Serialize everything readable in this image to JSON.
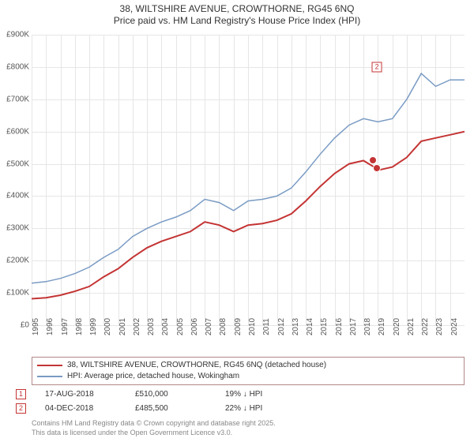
{
  "title": {
    "line1": "38, WILTSHIRE AVENUE, CROWTHORNE, RG45 6NQ",
    "line2": "Price paid vs. HM Land Registry's House Price Index (HPI)",
    "fontsize": 12,
    "color": "#333333"
  },
  "chart": {
    "type": "line",
    "background_color": "#ffffff",
    "grid_color": "#e6e6e6",
    "y_axis": {
      "min": 0,
      "max": 900000,
      "tick_step": 100000,
      "tick_labels": [
        "£0",
        "£100K",
        "£200K",
        "£300K",
        "£400K",
        "£500K",
        "£600K",
        "£700K",
        "£800K",
        "£900K"
      ],
      "label_fontsize": 10,
      "label_color": "#555555"
    },
    "x_axis": {
      "min": 1995,
      "max": 2025,
      "tick_step": 1,
      "tick_labels": [
        "1995",
        "1996",
        "1997",
        "1998",
        "1999",
        "2000",
        "2001",
        "2002",
        "2003",
        "2004",
        "2005",
        "2006",
        "2007",
        "2008",
        "2009",
        "2010",
        "2011",
        "2012",
        "2013",
        "2014",
        "2015",
        "2016",
        "2017",
        "2018",
        "2019",
        "2020",
        "2021",
        "2022",
        "2023",
        "2024"
      ],
      "label_fontsize": 10,
      "label_color": "#555555",
      "rotation": -90
    },
    "series": [
      {
        "name": "price_paid",
        "label": "38, WILTSHIRE AVENUE, CROWTHORNE, RG45 6NQ (detached house)",
        "color": "#c43434",
        "line_width": 2,
        "points": [
          [
            1995,
            82000
          ],
          [
            1996,
            85000
          ],
          [
            1997,
            93000
          ],
          [
            1998,
            105000
          ],
          [
            1999,
            120000
          ],
          [
            2000,
            150000
          ],
          [
            2001,
            175000
          ],
          [
            2002,
            210000
          ],
          [
            2003,
            240000
          ],
          [
            2004,
            260000
          ],
          [
            2005,
            275000
          ],
          [
            2006,
            290000
          ],
          [
            2007,
            320000
          ],
          [
            2008,
            310000
          ],
          [
            2009,
            290000
          ],
          [
            2010,
            310000
          ],
          [
            2011,
            315000
          ],
          [
            2012,
            325000
          ],
          [
            2013,
            345000
          ],
          [
            2014,
            385000
          ],
          [
            2015,
            430000
          ],
          [
            2016,
            470000
          ],
          [
            2017,
            500000
          ],
          [
            2018,
            510000
          ],
          [
            2018.9,
            485500
          ],
          [
            2019,
            480000
          ],
          [
            2020,
            490000
          ],
          [
            2021,
            520000
          ],
          [
            2022,
            570000
          ],
          [
            2023,
            580000
          ],
          [
            2024,
            590000
          ],
          [
            2025,
            600000
          ]
        ]
      },
      {
        "name": "hpi",
        "label": "HPI: Average price, detached house, Wokingham",
        "color": "#7a9bc4",
        "line_width": 1.5,
        "points": [
          [
            1995,
            130000
          ],
          [
            1996,
            135000
          ],
          [
            1997,
            145000
          ],
          [
            1998,
            160000
          ],
          [
            1999,
            180000
          ],
          [
            2000,
            210000
          ],
          [
            2001,
            235000
          ],
          [
            2002,
            275000
          ],
          [
            2003,
            300000
          ],
          [
            2004,
            320000
          ],
          [
            2005,
            335000
          ],
          [
            2006,
            355000
          ],
          [
            2007,
            390000
          ],
          [
            2008,
            380000
          ],
          [
            2009,
            355000
          ],
          [
            2010,
            385000
          ],
          [
            2011,
            390000
          ],
          [
            2012,
            400000
          ],
          [
            2013,
            425000
          ],
          [
            2014,
            475000
          ],
          [
            2015,
            530000
          ],
          [
            2016,
            580000
          ],
          [
            2017,
            620000
          ],
          [
            2018,
            640000
          ],
          [
            2019,
            630000
          ],
          [
            2020,
            640000
          ],
          [
            2021,
            700000
          ],
          [
            2022,
            780000
          ],
          [
            2023,
            740000
          ],
          [
            2024,
            760000
          ],
          [
            2025,
            760000
          ]
        ]
      }
    ],
    "sale_points": [
      {
        "year": 2018.63,
        "value": 510000
      },
      {
        "year": 2018.93,
        "value": 485500
      }
    ],
    "overlay_markers": [
      {
        "n": "2",
        "year": 2018.93,
        "y_value": 800000
      }
    ]
  },
  "legend": {
    "border_color": "#b08888",
    "fontsize": 10,
    "items": [
      {
        "color": "#c43434",
        "width": 2,
        "label": "38, WILTSHIRE AVENUE, CROWTHORNE, RG45 6NQ (detached house)"
      },
      {
        "color": "#7a9bc4",
        "width": 1.5,
        "label": "HPI: Average price, detached house, Wokingham"
      }
    ]
  },
  "markers": [
    {
      "n": "1",
      "date": "17-AUG-2018",
      "price": "£510,000",
      "delta": "19% ↓ HPI"
    },
    {
      "n": "2",
      "date": "04-DEC-2018",
      "price": "£485,500",
      "delta": "22% ↓ HPI"
    }
  ],
  "credits": {
    "line1": "Contains HM Land Registry data © Crown copyright and database right 2025.",
    "line2": "This data is licensed under the Open Government Licence v3.0.",
    "fontsize": 9,
    "color": "#888888"
  }
}
